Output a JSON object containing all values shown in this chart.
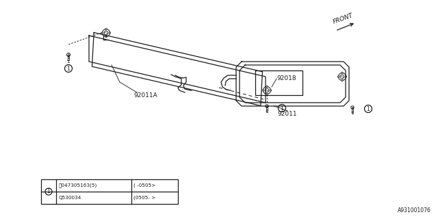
{
  "bg_color": "#ffffff",
  "line_color": "#1a1a1a",
  "diagram_id": "A931001076",
  "front_label": "FRONT",
  "label_92011A": "92011A",
  "label_92018": "92018",
  "label_92011": "92011",
  "table_row1_col1": "Ⓡ047305163(5)",
  "table_row1_col2": "( -0505>",
  "table_row2_col1": "Q530034",
  "table_row2_col2": "(0505- >"
}
